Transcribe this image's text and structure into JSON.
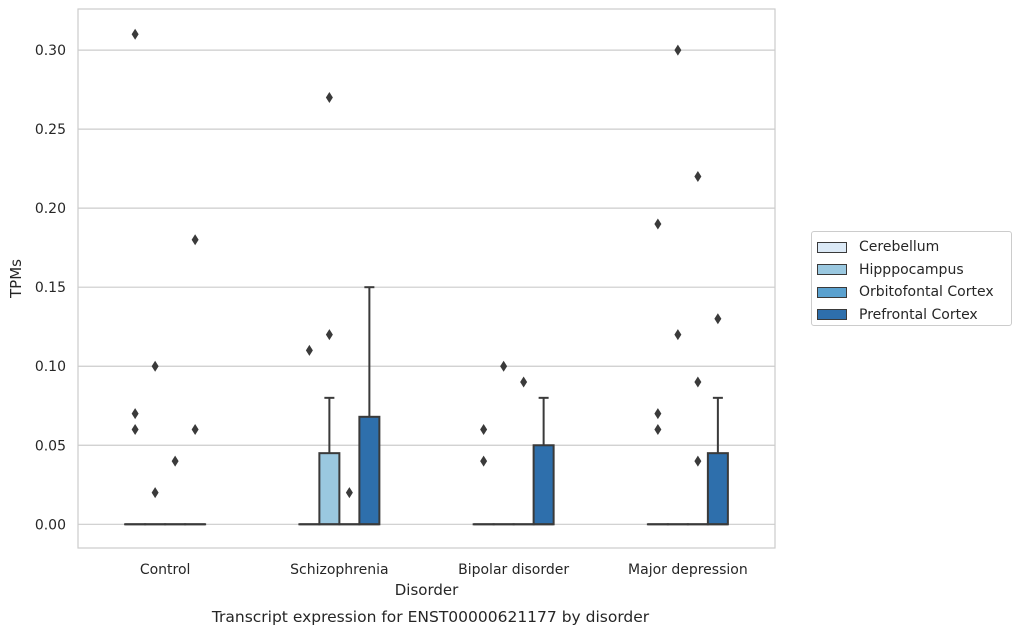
{
  "chart_data": {
    "type": "box",
    "title": "Transcript expression for ENST00000621177 by disorder",
    "xlabel": "Disorder",
    "ylabel": "TPMs",
    "ylim": [
      -0.015,
      0.326
    ],
    "yticks": [
      "0.00",
      "0.05",
      "0.10",
      "0.15",
      "0.20",
      "0.25",
      "0.30"
    ],
    "grid": true,
    "legend_position": "right",
    "categories": [
      "Control",
      "Schizophrenia",
      "Bipolar disorder",
      "Major depression"
    ],
    "series": [
      {
        "name": "Cerebellum",
        "color": "#dbe9f6"
      },
      {
        "name": "Hipppocampus",
        "color": "#9ac8e0"
      },
      {
        "name": "Orbitofontal Cortex",
        "color": "#5aa1cf"
      },
      {
        "name": "Prefrontal Cortex",
        "color": "#2e6fac"
      }
    ],
    "boxes": [
      {
        "category": "Control",
        "series": "Cerebellum",
        "q1": 0,
        "median": 0,
        "q3": 0,
        "whisker_low": 0,
        "whisker_high": 0,
        "outliers": [
          0.07,
          0.06,
          0.31
        ]
      },
      {
        "category": "Control",
        "series": "Hipppocampus",
        "q1": 0,
        "median": 0,
        "q3": 0,
        "whisker_low": 0,
        "whisker_high": 0,
        "outliers": [
          0.1,
          0.02
        ]
      },
      {
        "category": "Control",
        "series": "Orbitofontal Cortex",
        "q1": 0,
        "median": 0,
        "q3": 0,
        "whisker_low": 0,
        "whisker_high": 0,
        "outliers": [
          0.04
        ]
      },
      {
        "category": "Control",
        "series": "Prefrontal Cortex",
        "q1": 0,
        "median": 0,
        "q3": 0,
        "whisker_low": 0,
        "whisker_high": 0,
        "outliers": [
          0.06,
          0.18
        ]
      },
      {
        "category": "Schizophrenia",
        "series": "Cerebellum",
        "q1": 0,
        "median": 0,
        "q3": 0,
        "whisker_low": 0,
        "whisker_high": 0,
        "outliers": [
          0.11
        ]
      },
      {
        "category": "Schizophrenia",
        "series": "Hipppocampus",
        "q1": 0,
        "median": 0,
        "q3": 0.045,
        "whisker_low": 0,
        "whisker_high": 0.08,
        "outliers": [
          0.12,
          0.27
        ]
      },
      {
        "category": "Schizophrenia",
        "series": "Orbitofontal Cortex",
        "q1": 0,
        "median": 0,
        "q3": 0,
        "whisker_low": 0,
        "whisker_high": 0,
        "outliers": [
          0.02
        ]
      },
      {
        "category": "Schizophrenia",
        "series": "Prefrontal Cortex",
        "q1": 0,
        "median": 0,
        "q3": 0.068,
        "whisker_low": 0,
        "whisker_high": 0.15,
        "outliers": []
      },
      {
        "category": "Bipolar disorder",
        "series": "Cerebellum",
        "q1": 0,
        "median": 0,
        "q3": 0,
        "whisker_low": 0,
        "whisker_high": 0,
        "outliers": [
          0.06,
          0.04
        ]
      },
      {
        "category": "Bipolar disorder",
        "series": "Hipppocampus",
        "q1": 0,
        "median": 0,
        "q3": 0,
        "whisker_low": 0,
        "whisker_high": 0,
        "outliers": [
          0.1
        ]
      },
      {
        "category": "Bipolar disorder",
        "series": "Orbitofontal Cortex",
        "q1": 0,
        "median": 0,
        "q3": 0,
        "whisker_low": 0,
        "whisker_high": 0,
        "outliers": [
          0.09
        ]
      },
      {
        "category": "Bipolar disorder",
        "series": "Prefrontal Cortex",
        "q1": 0,
        "median": 0,
        "q3": 0.05,
        "whisker_low": 0,
        "whisker_high": 0.08,
        "outliers": []
      },
      {
        "category": "Major depression",
        "series": "Cerebellum",
        "q1": 0,
        "median": 0,
        "q3": 0,
        "whisker_low": 0,
        "whisker_high": 0,
        "outliers": [
          0.19,
          0.07,
          0.06
        ]
      },
      {
        "category": "Major depression",
        "series": "Hipppocampus",
        "q1": 0,
        "median": 0,
        "q3": 0,
        "whisker_low": 0,
        "whisker_high": 0,
        "outliers": [
          0.3,
          0.12
        ]
      },
      {
        "category": "Major depression",
        "series": "Orbitofontal Cortex",
        "q1": 0,
        "median": 0,
        "q3": 0,
        "whisker_low": 0,
        "whisker_high": 0,
        "outliers": [
          0.22,
          0.09,
          0.04
        ]
      },
      {
        "category": "Major depression",
        "series": "Prefrontal Cortex",
        "q1": 0,
        "median": 0,
        "q3": 0.045,
        "whisker_low": 0,
        "whisker_high": 0.08,
        "outliers": [
          0.13
        ]
      }
    ]
  }
}
